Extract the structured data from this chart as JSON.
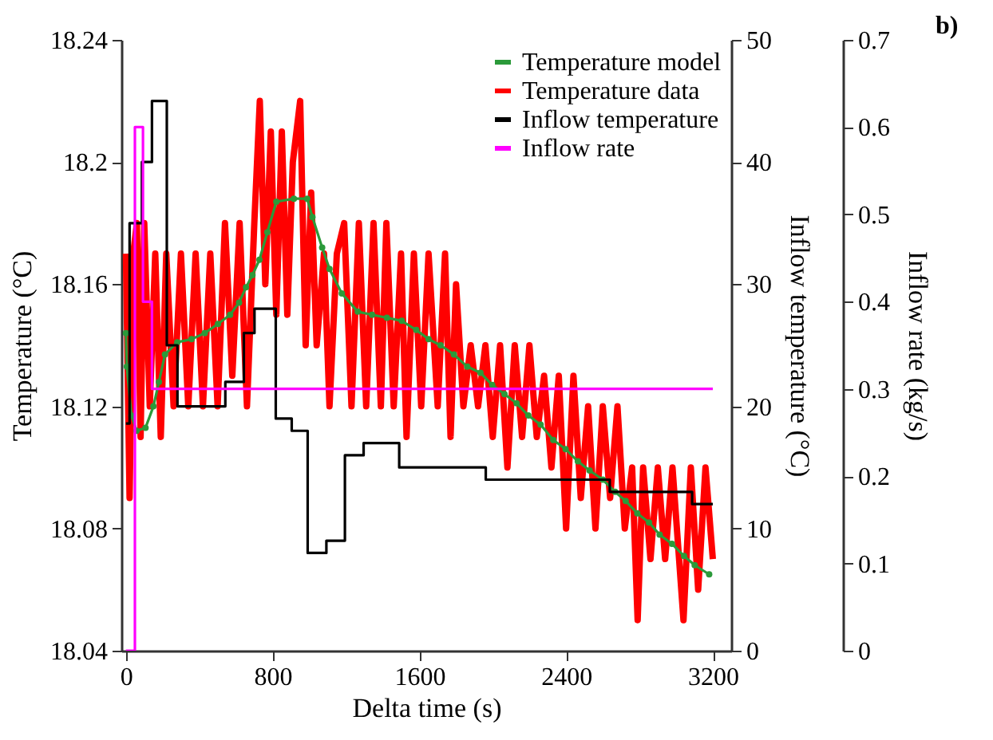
{
  "chart_data": {
    "type": "line",
    "xlabel": "Delta time (s)",
    "ylabel": "Temperature (°C)",
    "y2label": "Inflow temperature (°C)",
    "y3label": "Inflow rate (kg/s)",
    "xlim": [
      -25,
      3300
    ],
    "xticks": [
      0,
      800,
      1600,
      2400,
      3200
    ],
    "ylim": [
      18.04,
      18.24
    ],
    "yticks": [
      18.04,
      18.08,
      18.12,
      18.16,
      18.2,
      18.24
    ],
    "y2lim": [
      0,
      50
    ],
    "y2ticks": [
      0,
      10,
      20,
      30,
      40,
      50
    ],
    "y3lim": [
      0,
      0.7
    ],
    "y3ticks": [
      0,
      0.1,
      0.2,
      0.3,
      0.4,
      0.5,
      0.6,
      0.7
    ],
    "grid": false,
    "legend": "top right",
    "line_style": "solid",
    "annotations": [
      "b)"
    ],
    "series": [
      {
        "name": "Temperature model",
        "color": "#2b9a3a",
        "marker": "circle",
        "x": [
          0,
          5,
          30,
          58,
          107,
          150,
          180,
          213,
          280,
          358,
          430,
          502,
          568,
          617,
          655,
          690,
          728,
          771,
          820,
          916,
          988,
          1017,
          1070,
          1110,
          1177,
          1264,
          1342,
          1423,
          1504,
          1583,
          1650,
          1716,
          1788,
          1861,
          1933,
          1997,
          2064,
          2130,
          2194,
          2261,
          2330,
          2397,
          2464,
          2528,
          2600,
          2667,
          2725,
          2788,
          2852,
          2910,
          2977,
          3043,
          3101,
          3180
        ],
        "values": [
          18.144,
          18.133,
          18.117,
          18.112,
          18.113,
          18.12,
          18.128,
          18.137,
          18.141,
          18.142,
          18.144,
          18.147,
          18.15,
          18.154,
          18.159,
          18.163,
          18.168,
          18.177,
          18.187,
          18.188,
          18.188,
          18.182,
          18.172,
          18.165,
          18.157,
          18.151,
          18.15,
          18.149,
          18.148,
          18.145,
          18.142,
          18.14,
          18.137,
          18.133,
          18.131,
          18.127,
          18.124,
          18.121,
          18.117,
          18.114,
          18.109,
          18.106,
          18.102,
          18.099,
          18.096,
          18.092,
          18.089,
          18.085,
          18.082,
          18.078,
          18.075,
          18.071,
          18.068,
          18.065
        ]
      },
      {
        "name": "Temperature data",
        "color": "#ff0000",
        "x": [
          0,
          20,
          40,
          60,
          80,
          100,
          130,
          160,
          190,
          220,
          260,
          300,
          340,
          380,
          420,
          460,
          500,
          540,
          580,
          620,
          660,
          700,
          730,
          760,
          790,
          820,
          850,
          880,
          910,
          950,
          980,
          1010,
          1040,
          1080,
          1110,
          1150,
          1190,
          1230,
          1270,
          1310,
          1350,
          1390,
          1420,
          1460,
          1500,
          1530,
          1570,
          1610,
          1650,
          1700,
          1740,
          1770,
          1800,
          1840,
          1880,
          1920,
          1960,
          2000,
          2040,
          2080,
          2120,
          2160,
          2200,
          2240,
          2280,
          2320,
          2360,
          2400,
          2440,
          2480,
          2520,
          2560,
          2600,
          2640,
          2680,
          2720,
          2760,
          2790,
          2820,
          2860,
          2900,
          2940,
          2980,
          3040,
          3080,
          3120,
          3160,
          3200
        ],
        "values": [
          18.17,
          18.09,
          18.17,
          18.18,
          18.11,
          18.18,
          18.12,
          18.17,
          18.11,
          18.17,
          18.12,
          18.17,
          18.12,
          18.17,
          18.12,
          18.17,
          18.12,
          18.18,
          18.13,
          18.18,
          18.12,
          18.18,
          18.22,
          18.16,
          18.21,
          18.15,
          18.21,
          18.15,
          18.2,
          18.22,
          18.14,
          18.19,
          18.14,
          18.17,
          18.12,
          18.17,
          18.18,
          18.12,
          18.18,
          18.12,
          18.18,
          18.12,
          18.18,
          18.12,
          18.17,
          18.11,
          18.17,
          18.12,
          18.17,
          18.12,
          18.17,
          18.11,
          18.16,
          18.12,
          18.14,
          18.12,
          18.14,
          18.11,
          18.14,
          18.1,
          18.14,
          18.11,
          18.14,
          18.11,
          18.13,
          18.1,
          18.13,
          18.08,
          18.13,
          18.09,
          18.12,
          18.08,
          18.12,
          18.09,
          18.12,
          18.08,
          18.1,
          18.05,
          18.1,
          18.07,
          18.1,
          18.07,
          18.1,
          18.05,
          18.1,
          18.06,
          18.1,
          18.07
        ]
      },
      {
        "name": "Inflow temperature",
        "color": "#000000",
        "type": "step",
        "axis": "y2",
        "x": [
          0,
          20,
          87,
          142,
          223,
          281,
          542,
          643,
          701,
          817,
          904,
          991,
          1093,
          1194,
          1296,
          1490,
          1962,
          2638,
          3087,
          3200
        ],
        "values": [
          18.6,
          35,
          40,
          45,
          25,
          20,
          22,
          26,
          28,
          19,
          18,
          8,
          9,
          16,
          17,
          15,
          14,
          13,
          12,
          12
        ]
      },
      {
        "name": "Inflow rate",
        "color": "#ff00ff",
        "type": "step",
        "axis": "y3",
        "x": [
          0,
          49,
          93,
          142,
          3200
        ],
        "values": [
          0,
          0.6,
          0.4,
          0.3,
          0.3
        ]
      }
    ]
  }
}
